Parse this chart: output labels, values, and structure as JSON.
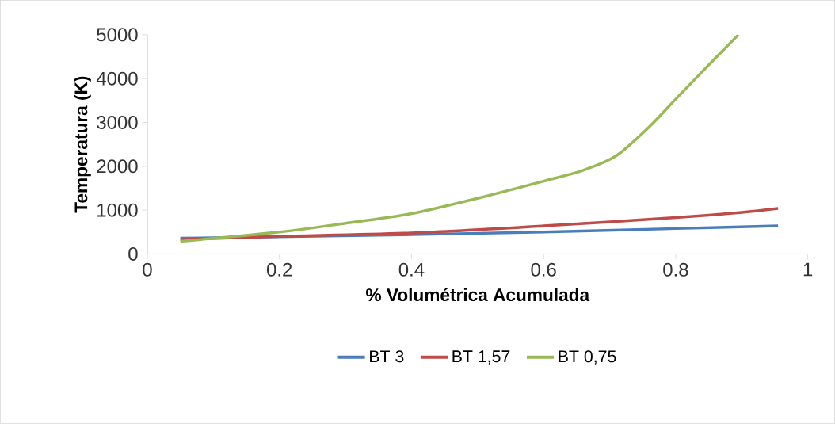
{
  "chart_data": {
    "type": "line",
    "xlabel": "% Volumétrica Acumulada",
    "ylabel": "Temperatura (K)",
    "xlim": [
      0,
      1
    ],
    "xticks": [
      0,
      0.2,
      0.4,
      0.6,
      0.8,
      1
    ],
    "ylim": [
      0,
      5000
    ],
    "yticks": [
      0,
      1000,
      2000,
      3000,
      4000,
      5000
    ],
    "legend": "bottom",
    "grid": false,
    "marker": "none",
    "line_style": "solid",
    "series": [
      {
        "name": "BT 3",
        "color": "#4a7ebb",
        "x": [
          0.05,
          0.4,
          0.6,
          0.8,
          0.955
        ],
        "values": [
          360,
          440,
          500,
          580,
          640
        ]
      },
      {
        "name": "BT 1,57",
        "color": "#be4b48",
        "x": [
          0.05,
          0.2,
          0.4,
          0.6,
          0.8,
          0.9,
          0.955
        ],
        "values": [
          330,
          400,
          480,
          640,
          830,
          950,
          1040
        ]
      },
      {
        "name": "BT 0,75",
        "color": "#98b954",
        "x": [
          0.05,
          0.2,
          0.3,
          0.4,
          0.5,
          0.6,
          0.66,
          0.71,
          0.76,
          0.8,
          0.85,
          0.895
        ],
        "values": [
          290,
          500,
          700,
          920,
          1270,
          1660,
          1910,
          2240,
          2900,
          3530,
          4310,
          5000
        ]
      }
    ]
  }
}
